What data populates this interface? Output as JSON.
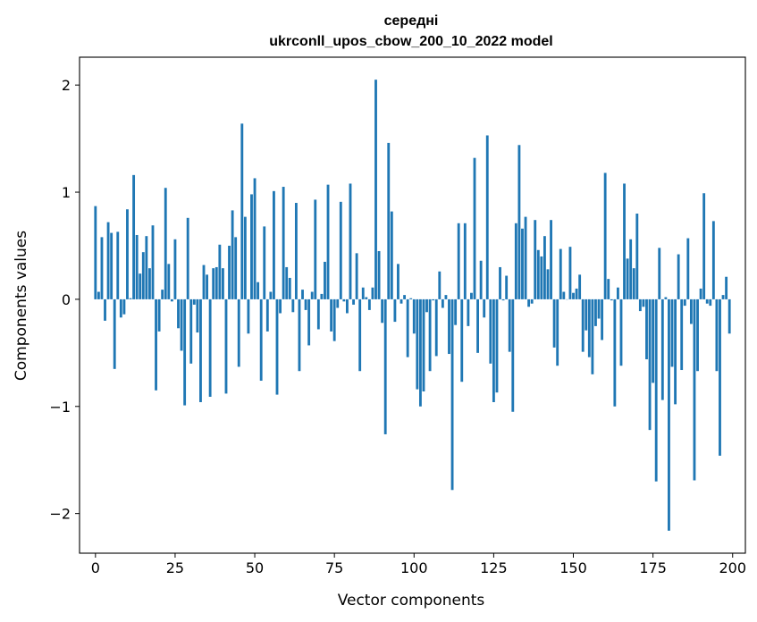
{
  "chart_data": {
    "type": "bar",
    "title": "середні",
    "subtitle": "ukrconll_upos_cbow_200_10_2022 model",
    "xlabel": "Vector components",
    "ylabel": "Components values",
    "xlim": [
      -5,
      204
    ],
    "ylim": [
      -2.37,
      2.26
    ],
    "xticks": [
      0,
      25,
      50,
      75,
      100,
      125,
      150,
      175,
      200
    ],
    "yticks": [
      -2,
      -1,
      0,
      1,
      2
    ],
    "ytick_labels": [
      "−2",
      "−1",
      "0",
      "1",
      "2"
    ],
    "bar_color": "#1f77b4",
    "grid": false,
    "x": [
      0,
      1,
      2,
      3,
      4,
      5,
      6,
      7,
      8,
      9,
      10,
      11,
      12,
      13,
      14,
      15,
      16,
      17,
      18,
      19,
      20,
      21,
      22,
      23,
      24,
      25,
      26,
      27,
      28,
      29,
      30,
      31,
      32,
      33,
      34,
      35,
      36,
      37,
      38,
      39,
      40,
      41,
      42,
      43,
      44,
      45,
      46,
      47,
      48,
      49,
      50,
      51,
      52,
      53,
      54,
      55,
      56,
      57,
      58,
      59,
      60,
      61,
      62,
      63,
      64,
      65,
      66,
      67,
      68,
      69,
      70,
      71,
      72,
      73,
      74,
      75,
      76,
      77,
      78,
      79,
      80,
      81,
      82,
      83,
      84,
      85,
      86,
      87,
      88,
      89,
      90,
      91,
      92,
      93,
      94,
      95,
      96,
      97,
      98,
      99,
      100,
      101,
      102,
      103,
      104,
      105,
      106,
      107,
      108,
      109,
      110,
      111,
      112,
      113,
      114,
      115,
      116,
      117,
      118,
      119,
      120,
      121,
      122,
      123,
      124,
      125,
      126,
      127,
      128,
      129,
      130,
      131,
      132,
      133,
      134,
      135,
      136,
      137,
      138,
      139,
      140,
      141,
      142,
      143,
      144,
      145,
      146,
      147,
      148,
      149,
      150,
      151,
      152,
      153,
      154,
      155,
      156,
      157,
      158,
      159,
      160,
      161,
      162,
      163,
      164,
      165,
      166,
      167,
      168,
      169,
      170,
      171,
      172,
      173,
      174,
      175,
      176,
      177,
      178,
      179,
      180,
      181,
      182,
      183,
      184,
      185,
      186,
      187,
      188,
      189,
      190,
      191,
      192,
      193,
      194,
      195,
      196,
      197,
      198,
      199
    ],
    "values": [
      0.87,
      0.07,
      0.58,
      -0.2,
      0.72,
      0.62,
      -0.65,
      0.63,
      -0.17,
      -0.14,
      0.84,
      0.01,
      1.16,
      0.6,
      0.24,
      0.44,
      0.59,
      0.29,
      0.69,
      -0.85,
      -0.3,
      0.09,
      1.04,
      0.33,
      -0.02,
      0.56,
      -0.27,
      -0.48,
      -0.99,
      0.76,
      -0.6,
      -0.05,
      -0.31,
      -0.96,
      0.32,
      0.23,
      -0.91,
      0.29,
      0.3,
      0.51,
      0.29,
      -0.88,
      0.5,
      0.83,
      0.58,
      -0.63,
      1.64,
      0.77,
      -0.32,
      0.98,
      1.13,
      0.16,
      -0.76,
      0.68,
      -0.3,
      0.07,
      1.01,
      -0.89,
      -0.13,
      1.05,
      0.3,
      0.2,
      -0.12,
      0.9,
      -0.67,
      0.09,
      -0.1,
      -0.43,
      0.07,
      0.93,
      -0.28,
      0.05,
      0.35,
      1.07,
      -0.3,
      -0.39,
      -0.08,
      0.91,
      -0.02,
      -0.13,
      1.08,
      -0.05,
      0.43,
      -0.67,
      0.11,
      0.02,
      -0.1,
      0.11,
      2.05,
      0.45,
      -0.22,
      -1.26,
      1.46,
      0.82,
      -0.21,
      0.33,
      -0.04,
      0.04,
      -0.54,
      0.01,
      -0.32,
      -0.84,
      -1.0,
      -0.86,
      -0.12,
      -0.67,
      -0.01,
      -0.53,
      0.26,
      -0.08,
      0.04,
      -0.51,
      -1.78,
      -0.24,
      0.71,
      -0.77,
      0.71,
      -0.25,
      0.06,
      1.32,
      -0.5,
      0.36,
      -0.17,
      1.53,
      -0.6,
      -0.96,
      -0.87,
      0.3,
      -0.01,
      0.22,
      -0.49,
      -1.05,
      0.71,
      1.44,
      0.66,
      0.77,
      -0.07,
      -0.04,
      0.74,
      0.46,
      0.4,
      0.59,
      0.28,
      0.74,
      -0.45,
      -0.62,
      0.47,
      0.07,
      0.0,
      0.49,
      0.06,
      0.1,
      0.23,
      -0.49,
      -0.29,
      -0.54,
      -0.7,
      -0.25,
      -0.18,
      -0.38,
      1.18,
      0.19,
      -0.01,
      -1.0,
      0.11,
      -0.62,
      1.08,
      0.38,
      0.56,
      0.29,
      0.8,
      -0.11,
      -0.07,
      -0.56,
      -1.22,
      -0.78,
      -1.7,
      0.48,
      -0.94,
      0.02,
      -2.16,
      -0.63,
      -0.98,
      0.42,
      -0.66,
      -0.06,
      0.57,
      -0.23,
      -1.69,
      -0.67,
      0.1,
      0.99,
      -0.04,
      -0.06,
      0.73,
      -0.67,
      -1.46,
      0.04,
      0.21,
      -0.32
    ]
  }
}
